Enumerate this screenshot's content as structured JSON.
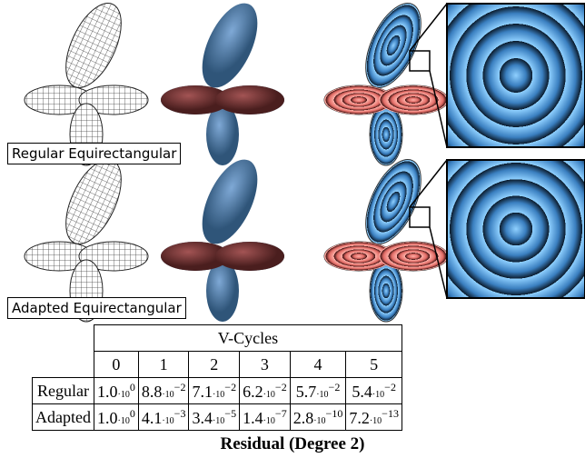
{
  "figure": {
    "rows": [
      {
        "label": "Regular Equirectangular"
      },
      {
        "label": "Adapted Equirectangular"
      }
    ]
  },
  "table": {
    "title": "V-Cycles",
    "columns": [
      "0",
      "1",
      "2",
      "3",
      "4",
      "5"
    ],
    "rows": [
      {
        "label": "Regular",
        "cells": [
          {
            "m": "1.0",
            "b": "·10",
            "e": "0"
          },
          {
            "m": "8.8",
            "b": "·10",
            "e": "−2"
          },
          {
            "m": "7.1",
            "b": "·10",
            "e": "−2"
          },
          {
            "m": "6.2",
            "b": "·10",
            "e": "−2"
          },
          {
            "m": "5.7",
            "b": "·10",
            "e": "−2"
          },
          {
            "m": "5.4",
            "b": "·10",
            "e": "−2"
          }
        ]
      },
      {
        "label": "Adapted",
        "cells": [
          {
            "m": "1.0",
            "b": "·10",
            "e": "0"
          },
          {
            "m": "4.1",
            "b": "·10",
            "e": "−3"
          },
          {
            "m": "3.4",
            "b": "·10",
            "e": "−5"
          },
          {
            "m": "1.4",
            "b": "·10",
            "e": "−7"
          },
          {
            "m": "2.8",
            "b": "·10",
            "e": "−10"
          },
          {
            "m": "7.2",
            "b": "·10",
            "e": "−13"
          }
        ]
      }
    ]
  },
  "caption": "Residual (Degree 2)"
}
